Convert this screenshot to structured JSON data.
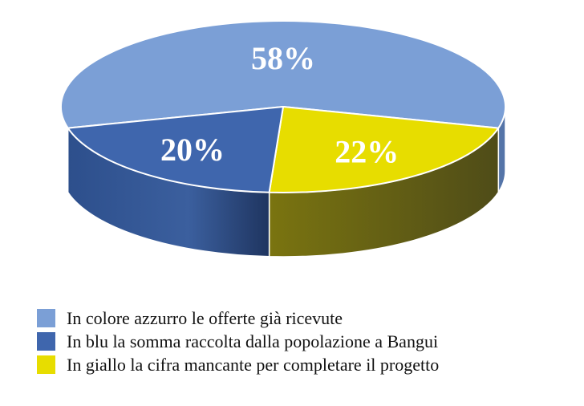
{
  "chart_data": {
    "type": "pie",
    "style": "3d",
    "slices": [
      {
        "label": "58%",
        "value": 58,
        "color": "#7b9fd6",
        "side_color": "#5474a8"
      },
      {
        "label": "22%",
        "value": 22,
        "color": "#e7dd00",
        "side_color": "#6b6a14"
      },
      {
        "label": "20%",
        "value": 20,
        "color": "#3f66ad",
        "side_color": "#2a4470"
      }
    ],
    "legend": {
      "placement": "bottom-left",
      "entries": [
        {
          "text": "In colore azzurro le offerte già ricevute",
          "color": "#7b9fd6"
        },
        {
          "text": "In blu la somma raccolta dalla popolazione a Bangui",
          "color": "#3f66ad"
        },
        {
          "text": "In giallo la cifra mancante per completare il progetto",
          "color": "#e7dd00"
        }
      ]
    }
  }
}
